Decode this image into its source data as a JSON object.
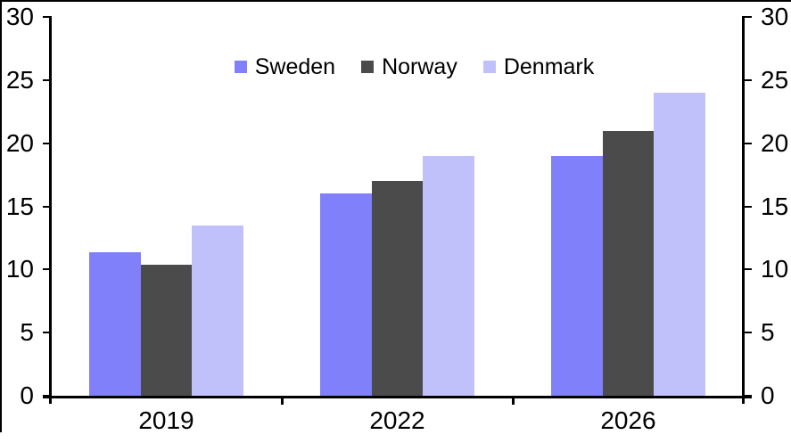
{
  "chart_data": {
    "type": "bar",
    "title": "",
    "xlabel": "",
    "ylabel": "",
    "categories": [
      "2019",
      "2022",
      "2026"
    ],
    "series": [
      {
        "name": "Sweden",
        "color": "#7F80FA",
        "values": [
          11.4,
          16,
          19
        ]
      },
      {
        "name": "Norway",
        "color": "#4B4B4B",
        "values": [
          10.4,
          17,
          21
        ]
      },
      {
        "name": "Denmark",
        "color": "#C0C1FA",
        "values": [
          13.5,
          19,
          24
        ]
      }
    ],
    "ylim": [
      0,
      30
    ],
    "yticks": [
      0,
      5,
      10,
      15,
      20,
      25,
      30
    ],
    "y_axis_sides": [
      "left",
      "right"
    ],
    "grid": false,
    "legend_position": "top-center",
    "axis_color": "#000000",
    "text_color": "#000000",
    "background_color": "#FFFFFF"
  }
}
